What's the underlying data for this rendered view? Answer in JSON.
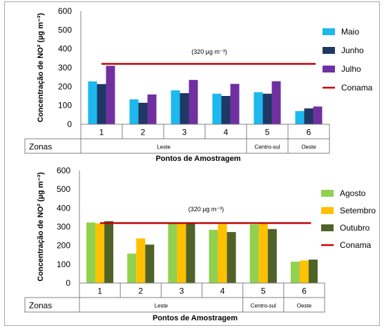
{
  "chart_data": [
    {
      "type": "bar",
      "categories": [
        "1",
        "2",
        "3",
        "4",
        "5",
        "6"
      ],
      "series": [
        {
          "name": "Maio",
          "values": [
            227,
            132,
            180,
            162,
            170,
            70
          ]
        },
        {
          "name": "Junho",
          "values": [
            213,
            114,
            165,
            150,
            162,
            84
          ]
        },
        {
          "name": "Julho",
          "values": [
            310,
            158,
            235,
            214,
            228,
            94
          ]
        }
      ],
      "reference_line": {
        "name": "Conama",
        "value": 320,
        "label": "(320 µg m⁻³)"
      },
      "ylabel": "Concentração de NO² (µg m⁻³)",
      "xlabel": "Pontos de Amostragem",
      "ylim": [
        0,
        600
      ],
      "yticks": [
        0,
        100,
        200,
        300,
        400,
        500,
        600
      ],
      "zone_header": "Zonas",
      "zones": [
        {
          "label": "Leste",
          "points": 4
        },
        {
          "label": "Centro-sul",
          "points": 1
        },
        {
          "label": "Oeste",
          "points": 1
        }
      ],
      "legend_position": "right",
      "colors": {
        "Maio": "#1cb8ee",
        "Junho": "#1f3864",
        "Julho": "#7030a0",
        "Conama": "#c00000"
      }
    },
    {
      "type": "bar",
      "categories": [
        "1",
        "2",
        "3",
        "4",
        "5",
        "6"
      ],
      "series": [
        {
          "name": "Agosto",
          "values": [
            323,
            157,
            318,
            284,
            313,
            114
          ]
        },
        {
          "name": "Setembro",
          "values": [
            318,
            238,
            323,
            314,
            318,
            120
          ]
        },
        {
          "name": "Outubro",
          "values": [
            330,
            205,
            318,
            272,
            288,
            125
          ]
        }
      ],
      "reference_line": {
        "name": "Conama",
        "value": 320,
        "label": "(320 µg m⁻³)"
      },
      "ylabel": "Concentração de NO² (µg m⁻³)",
      "xlabel": "Pontos de Amostragem",
      "ylim": [
        0,
        600
      ],
      "yticks": [
        0,
        100,
        200,
        300,
        400,
        500,
        600
      ],
      "zone_header": "Zonas",
      "zones": [
        {
          "label": "Leste",
          "points": 4
        },
        {
          "label": "Centro-sul",
          "points": 1
        },
        {
          "label": "Oeste",
          "points": 1
        }
      ],
      "legend_position": "right",
      "colors": {
        "Agosto": "#92d050",
        "Setembro": "#ffc000",
        "Outubro": "#4f6228",
        "Conama": "#c00000"
      }
    }
  ]
}
